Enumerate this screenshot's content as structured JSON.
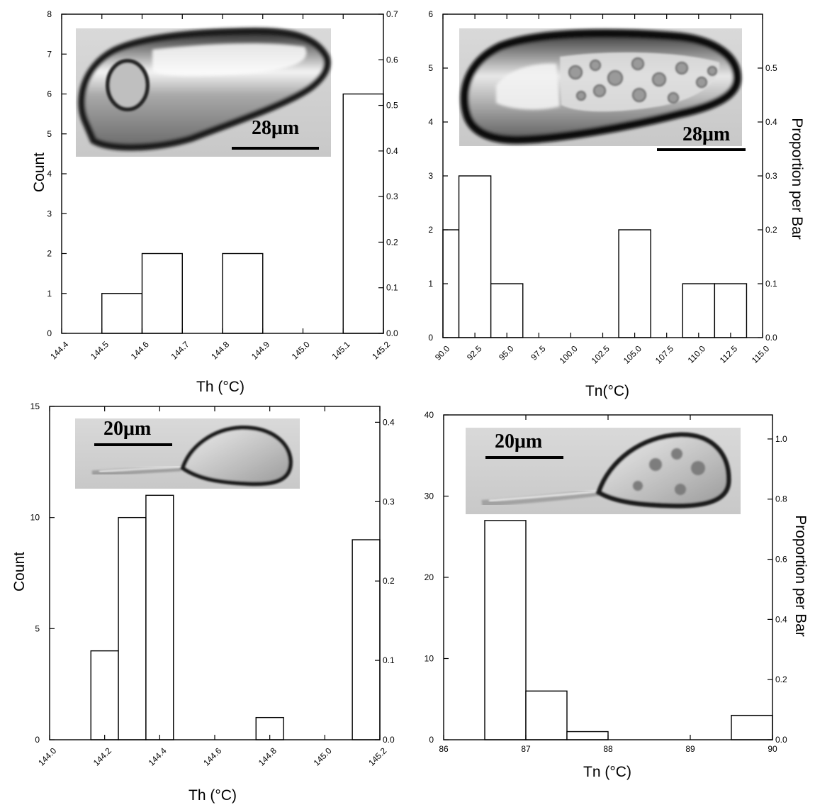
{
  "chart_data": [
    {
      "type": "bar",
      "xlabel": "Th (°C)",
      "ylabel": "Count",
      "y2label": "",
      "xlim": [
        144.4,
        145.2
      ],
      "ylim": [
        0,
        8
      ],
      "y2lim": [
        0,
        0.7
      ],
      "x_ticks": [
        "144.4",
        "144.5",
        "144.6",
        "144.7",
        "144.8",
        "144.9",
        "145.0",
        "145.1",
        "145.2"
      ],
      "y_ticks": [
        "0",
        "1",
        "2",
        "3",
        "4",
        "5",
        "6",
        "7",
        "8"
      ],
      "y2_ticks": [
        "0.0",
        "0.1",
        "0.2",
        "0.3",
        "0.4",
        "0.5",
        "0.6",
        "0.7"
      ],
      "bins": [
        {
          "x0": 144.5,
          "x1": 144.6,
          "count": 1
        },
        {
          "x0": 144.6,
          "x1": 144.7,
          "count": 2
        },
        {
          "x0": 144.8,
          "x1": 144.9,
          "count": 2
        },
        {
          "x0": 145.1,
          "x1": 145.2,
          "count": 6
        }
      ],
      "inset": {
        "scale_label": "28μm",
        "content": "elongated fluid inclusion with vapor bubble"
      }
    },
    {
      "type": "bar",
      "xlabel": "Tn(°C)",
      "ylabel": "",
      "y2label": "Proportion per Bar",
      "xlim": [
        90.0,
        115.0
      ],
      "ylim": [
        0,
        6
      ],
      "y2lim": [
        0,
        0.6
      ],
      "x_ticks": [
        "90.0",
        "92.5",
        "95.0",
        "97.5",
        "100.0",
        "102.5",
        "105.0",
        "107.5",
        "110.0",
        "112.5",
        "115.0"
      ],
      "y_ticks": [
        "0",
        "1",
        "2",
        "3",
        "4",
        "5",
        "6"
      ],
      "y2_ticks": [
        "0.0",
        "0.1",
        "0.2",
        "0.3",
        "0.4",
        "0.5"
      ],
      "bins": [
        {
          "x0": 90.0,
          "x1": 91.25,
          "count": 2
        },
        {
          "x0": 91.25,
          "x1": 93.75,
          "count": 3
        },
        {
          "x0": 93.75,
          "x1": 96.25,
          "count": 1
        },
        {
          "x0": 103.75,
          "x1": 106.25,
          "count": 2
        },
        {
          "x0": 108.75,
          "x1": 111.25,
          "count": 1
        },
        {
          "x0": 111.25,
          "x1": 113.75,
          "count": 1
        }
      ],
      "inset": {
        "scale_label": "28μm",
        "content": "elongated fluid inclusion with ice crystals"
      }
    },
    {
      "type": "bar",
      "xlabel": "Th (°C)",
      "ylabel": "Count",
      "y2label": "",
      "xlim": [
        144.0,
        145.2
      ],
      "ylim": [
        0,
        15
      ],
      "y2lim": [
        0,
        0.42
      ],
      "x_ticks": [
        "144.0",
        "144.2",
        "144.4",
        "144.6",
        "144.8",
        "145.0",
        "145.2"
      ],
      "y_ticks": [
        "0",
        "5",
        "10",
        "15"
      ],
      "y2_ticks": [
        "0.0",
        "0.1",
        "0.2",
        "0.3",
        "0.4"
      ],
      "bins": [
        {
          "x0": 144.15,
          "x1": 144.25,
          "count": 4
        },
        {
          "x0": 144.25,
          "x1": 144.35,
          "count": 10
        },
        {
          "x0": 144.35,
          "x1": 144.45,
          "count": 11
        },
        {
          "x0": 144.75,
          "x1": 144.85,
          "count": 1
        },
        {
          "x0": 145.1,
          "x1": 145.2,
          "count": 9
        }
      ],
      "inset": {
        "scale_label": "20μm",
        "content": "tear-drop fluid inclusion with thin neck"
      }
    },
    {
      "type": "bar",
      "xlabel": "Tn (°C)",
      "ylabel": "",
      "y2label": "Proportion per Bar",
      "xlim": [
        86,
        90
      ],
      "ylim": [
        0,
        40
      ],
      "y2lim": [
        0,
        1.08
      ],
      "x_ticks": [
        "86",
        "87",
        "88",
        "89",
        "90"
      ],
      "y_ticks": [
        "0",
        "10",
        "20",
        "30",
        "40"
      ],
      "y2_ticks": [
        "0.0",
        "0.2",
        "0.4",
        "0.6",
        "0.8",
        "1.0"
      ],
      "bins": [
        {
          "x0": 86.5,
          "x1": 87.0,
          "count": 27
        },
        {
          "x0": 87.0,
          "x1": 87.5,
          "count": 6
        },
        {
          "x0": 87.5,
          "x1": 88.0,
          "count": 1
        },
        {
          "x0": 89.5,
          "x1": 90.0,
          "count": 3
        }
      ],
      "inset": {
        "scale_label": "20μm",
        "content": "tear-drop fluid inclusion with ice crystals"
      }
    }
  ]
}
